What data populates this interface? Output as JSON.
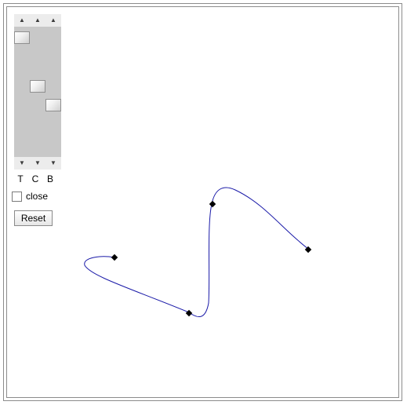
{
  "sliders": {
    "labels": [
      "T",
      "C",
      "B"
    ],
    "up_arrow": "▲",
    "down_arrow": "▼",
    "positions": [
      0.04,
      0.45,
      0.61
    ]
  },
  "close": {
    "label": "close",
    "checked": false
  },
  "reset": {
    "label": "Reset"
  },
  "curve": {
    "color": "#1a1aa8",
    "control_point_color": "#000000"
  }
}
